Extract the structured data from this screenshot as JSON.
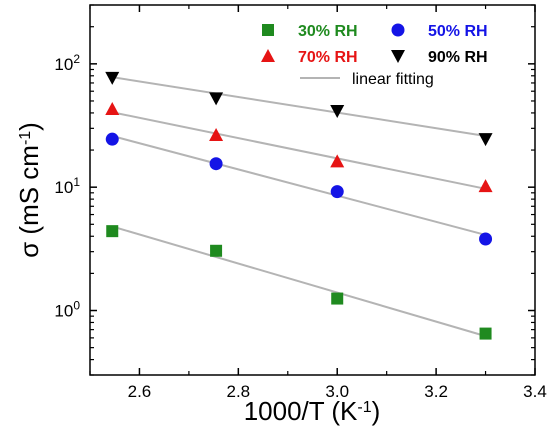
{
  "chart_data": {
    "type": "scatter",
    "xlabel": "1000/T (K",
    "xlabel_sup": "-1",
    "xlabel_end": ")",
    "ylabel": "σ (mS cm",
    "ylabel_sup": "-1",
    "ylabel_end": ")",
    "xlim": [
      2.5,
      3.4
    ],
    "ylim": [
      0.3,
      300
    ],
    "yscale": "log",
    "x_ticks": [
      2.6,
      2.8,
      3.0,
      3.2,
      3.4
    ],
    "x_tick_labels": [
      "2.6",
      "2.8",
      "3.0",
      "3.2",
      "3.4"
    ],
    "y_ticks": [
      {
        "value": 1,
        "base": "10",
        "exp": "0"
      },
      {
        "value": 10,
        "base": "10",
        "exp": "1"
      },
      {
        "value": 100,
        "base": "10",
        "exp": "2"
      }
    ],
    "legend_position": "top-right",
    "series": [
      {
        "name": "30% RH",
        "color": "#1f8a1f",
        "marker": "square",
        "x": [
          2.545,
          2.755,
          3.0,
          3.3
        ],
        "y": [
          4.4,
          3.05,
          1.25,
          0.65
        ],
        "fit": [
          [
            2.545,
            4.8
          ],
          [
            3.3,
            0.62
          ]
        ]
      },
      {
        "name": "50% RH",
        "color": "#1414e6",
        "marker": "circle",
        "x": [
          2.545,
          2.755,
          3.0,
          3.3
        ],
        "y": [
          24.5,
          15.5,
          9.2,
          3.8
        ],
        "fit": [
          [
            2.545,
            26
          ],
          [
            3.3,
            4.1
          ]
        ]
      },
      {
        "name": "70% RH",
        "color": "#e61414",
        "marker": "triangle-up",
        "x": [
          2.545,
          2.755,
          3.0,
          3.3
        ],
        "y": [
          43,
          26.5,
          16.2,
          10.2
        ],
        "fit": [
          [
            2.545,
            40.5
          ],
          [
            3.3,
            9.7
          ]
        ]
      },
      {
        "name": "90% RH",
        "color": "#000000",
        "marker": "triangle-down",
        "x": [
          2.545,
          2.755,
          3.0,
          3.3
        ],
        "y": [
          77,
          52.5,
          41.5,
          24.5
        ],
        "fit": [
          [
            2.545,
            78
          ],
          [
            3.3,
            26
          ]
        ]
      }
    ],
    "fit_legend_label": "linear fitting",
    "fit_color": "#b4b4b4"
  }
}
